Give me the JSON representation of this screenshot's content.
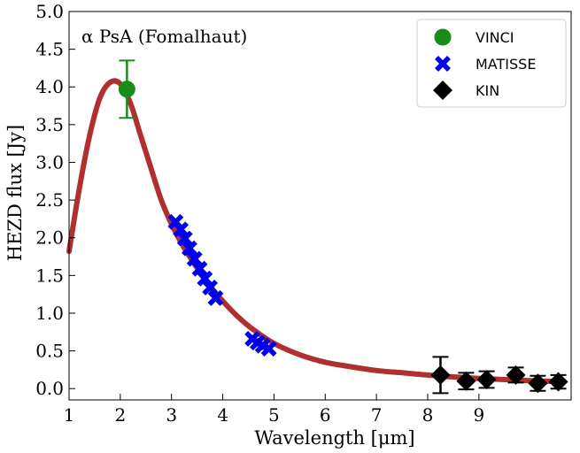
{
  "chart_data": {
    "type": "scatter",
    "title": "",
    "annotation": "α PsA (Fomalhaut)",
    "xlabel": "Wavelength [μm]",
    "ylabel": "HEZD flux [Jy]",
    "xlim": [
      1,
      10.8
    ],
    "ylim": [
      -0.15,
      5.0
    ],
    "xticks": [
      1,
      2,
      3,
      4,
      5,
      6,
      7,
      8,
      9
    ],
    "yticks": [
      0.0,
      0.5,
      1.0,
      1.5,
      2.0,
      2.5,
      3.0,
      3.5,
      4.0,
      4.5,
      5.0
    ],
    "legend_position": "top-right",
    "colors": {
      "VINCI": "#1a8c1a",
      "MATISSE": "#0000ee",
      "KIN": "#000000",
      "model": "#b03030"
    },
    "series": [
      {
        "name": "VINCI",
        "marker": "circle",
        "points": [
          {
            "x": 2.13,
            "y": 3.97,
            "err": 0.38
          }
        ]
      },
      {
        "name": "MATISSE",
        "marker": "x",
        "points": [
          {
            "x": 3.08,
            "y": 2.21
          },
          {
            "x": 3.18,
            "y": 2.11
          },
          {
            "x": 3.26,
            "y": 1.99
          },
          {
            "x": 3.35,
            "y": 1.86
          },
          {
            "x": 3.45,
            "y": 1.72
          },
          {
            "x": 3.55,
            "y": 1.59
          },
          {
            "x": 3.65,
            "y": 1.46
          },
          {
            "x": 3.75,
            "y": 1.34
          },
          {
            "x": 3.86,
            "y": 1.2
          },
          {
            "x": 4.58,
            "y": 0.66
          },
          {
            "x": 4.68,
            "y": 0.61
          },
          {
            "x": 4.78,
            "y": 0.57
          },
          {
            "x": 4.9,
            "y": 0.53
          }
        ]
      },
      {
        "name": "KIN",
        "marker": "diamond",
        "points": [
          {
            "x": 8.25,
            "y": 0.18,
            "err": 0.24
          },
          {
            "x": 8.75,
            "y": 0.1,
            "err": 0.11
          },
          {
            "x": 9.15,
            "y": 0.12,
            "err": 0.11
          },
          {
            "x": 9.72,
            "y": 0.18,
            "err": 0.1
          },
          {
            "x": 10.15,
            "y": 0.07,
            "err": 0.1
          },
          {
            "x": 10.55,
            "y": 0.09,
            "err": 0.09
          }
        ]
      }
    ],
    "model_curve": {
      "name": "model",
      "x": [
        1.0,
        1.2,
        1.4,
        1.6,
        1.8,
        2.0,
        2.2,
        2.4,
        2.6,
        2.8,
        3.0,
        3.2,
        3.4,
        3.6,
        3.8,
        4.0,
        4.3,
        4.6,
        5.0,
        5.5,
        6.0,
        6.5,
        7.0,
        7.5,
        8.0,
        8.5,
        9.0,
        9.5,
        10.0,
        10.5
      ],
      "y": [
        1.82,
        2.65,
        3.35,
        3.85,
        4.06,
        4.04,
        3.78,
        3.35,
        2.92,
        2.5,
        2.18,
        1.92,
        1.7,
        1.5,
        1.32,
        1.16,
        0.95,
        0.78,
        0.6,
        0.45,
        0.35,
        0.29,
        0.24,
        0.21,
        0.18,
        0.155,
        0.135,
        0.12,
        0.105,
        0.095
      ]
    }
  }
}
